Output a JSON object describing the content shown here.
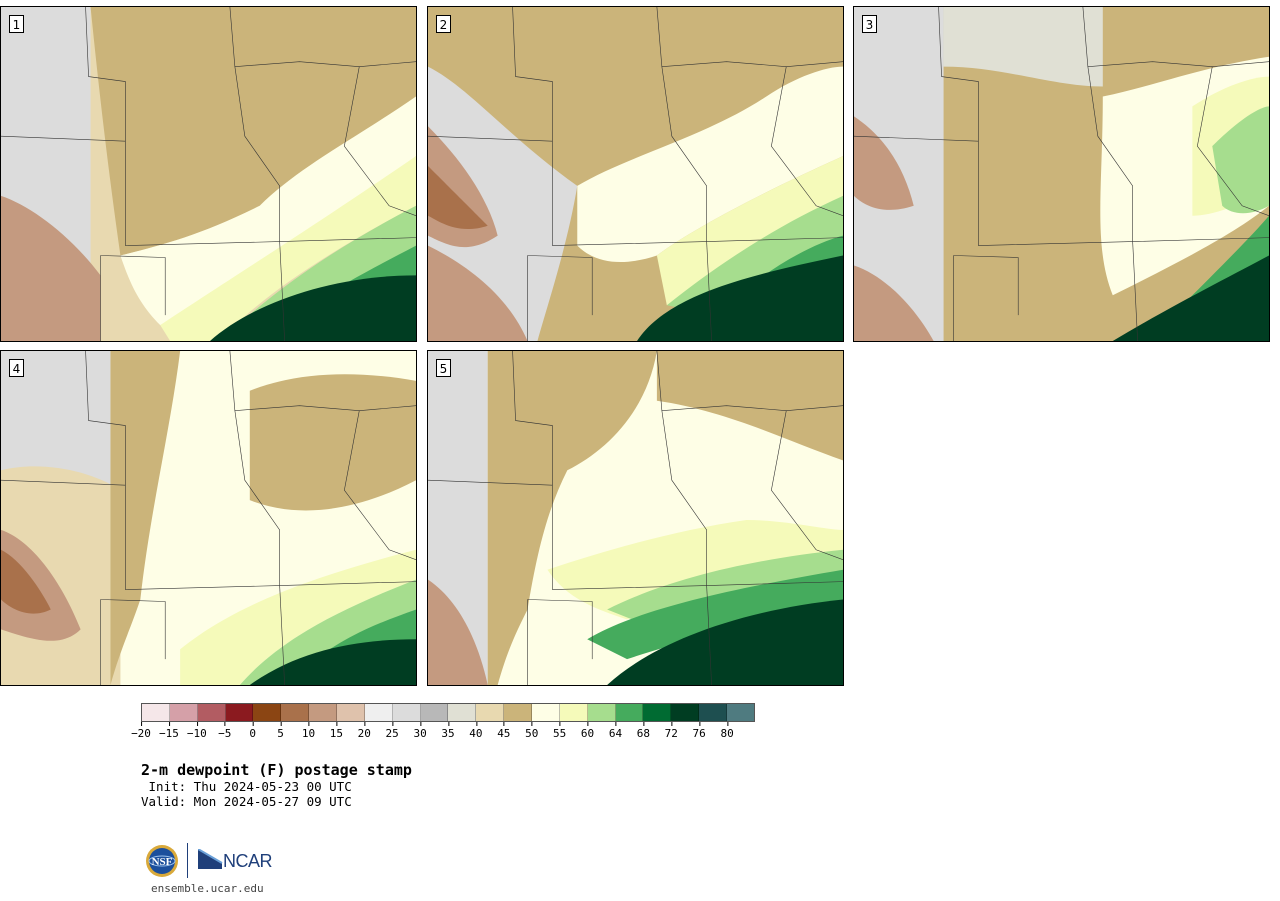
{
  "panels": [
    {
      "label": "1"
    },
    {
      "label": "2"
    },
    {
      "label": "3"
    },
    {
      "label": "4"
    },
    {
      "label": "5"
    }
  ],
  "colorbar": {
    "colors": [
      "#f5e7e9",
      "#d5a0a8",
      "#b25c62",
      "#8b1a1f",
      "#8b4513",
      "#a9714b",
      "#c49a80",
      "#dfc2ac",
      "#efefef",
      "#dcdcdc",
      "#b8b8b8",
      "#e0e0d4",
      "#e8d9b0",
      "#cbb47a",
      "#fefee6",
      "#f5faba",
      "#a6dd8e",
      "#45ab5d",
      "#006b32",
      "#003d22",
      "#1e4f50",
      "#4f7b80"
    ],
    "tick_labels": [
      "−20",
      "−15",
      "−10",
      "−5",
      "0",
      "5",
      "10",
      "15",
      "20",
      "25",
      "30",
      "35",
      "40",
      "45",
      "50",
      "55",
      "60",
      "64",
      "68",
      "72",
      "76",
      "80"
    ]
  },
  "title": "2-m dewpoint (F) postage stamp",
  "init": " Init: Thu 2024-05-23 00 UTC",
  "valid": "Valid: Mon 2024-05-27 09 UTC",
  "logos": {
    "ncar_text": "NCAR"
  },
  "url": "ensemble.ucar.edu"
}
